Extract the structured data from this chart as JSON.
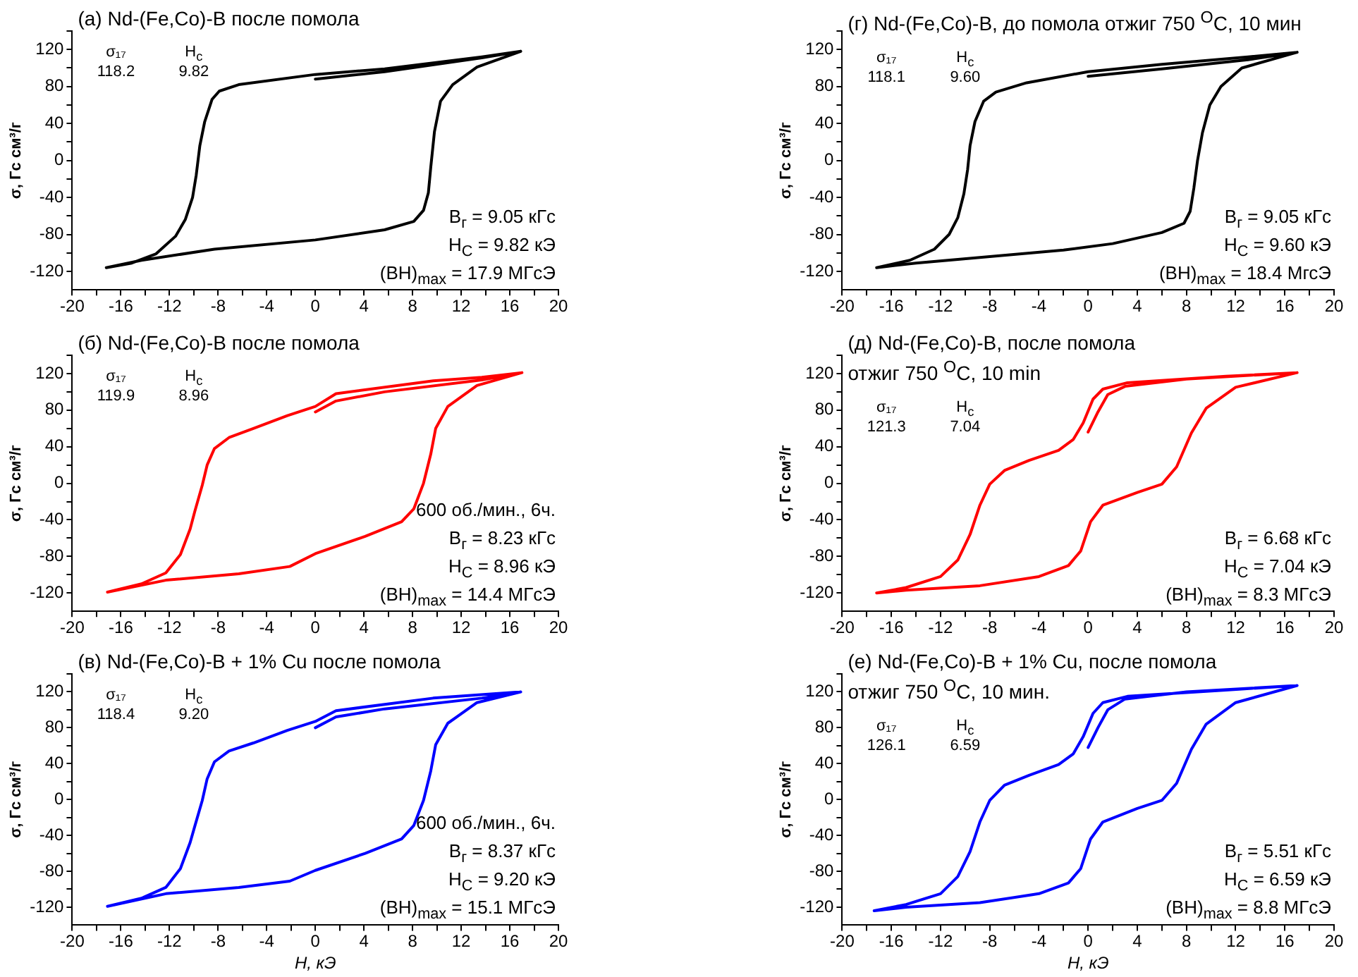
{
  "chart_data": [
    {
      "type": "line",
      "title": "(a)  Nd-(Fe,Co)-B после помола",
      "ylabel": "σ, Гс см³/г",
      "xlim": [
        -20,
        20
      ],
      "ylim": [
        -140,
        140
      ],
      "grid": false,
      "legend": false,
      "marker": "none",
      "line_style": "solid",
      "xticks": [
        -20,
        {
          "value": -18,
          "label": null
        },
        -16,
        {
          "value": -14,
          "label": null
        },
        -12,
        {
          "value": -10,
          "label": null
        },
        -8,
        {
          "value": -6,
          "label": null
        },
        -4,
        {
          "value": -2,
          "label": null
        },
        0,
        {
          "value": 2,
          "label": null
        },
        4,
        {
          "value": 6,
          "label": null
        },
        8,
        {
          "value": 10,
          "label": null
        },
        12,
        {
          "value": 14,
          "label": null
        },
        16,
        {
          "value": 18,
          "label": null
        },
        20
      ],
      "yticks": [
        -120,
        {
          "value": -100,
          "label": null
        },
        -80,
        {
          "value": -60,
          "label": null
        },
        -40,
        {
          "value": -20,
          "label": null
        },
        0,
        {
          "value": 20,
          "label": null
        },
        40,
        {
          "value": 60,
          "label": null
        },
        80,
        {
          "value": 100,
          "label": null
        },
        120,
        {
          "value": 140,
          "label": null
        }
      ],
      "annotations": [
        "σ₁₇",
        "H$_{c}$",
        "118.2",
        "9.82",
        "B$_{г}$ = 9.05 кГс",
        "H$_{C}$ = 9.82 кЭ",
        "(BH)$_{max}$ =  17.9 МГсЭ"
      ],
      "series": [
        {
          "color": "#000000",
          "x": [
            0,
            5.7,
            13.7,
            16.9,
            13.7,
            5.7,
            0,
            -6.3,
            -7.9,
            -8.5,
            -9.1,
            -9.5,
            -9.8,
            -10.1,
            -10.7,
            -11.5,
            -13.1,
            -15.1,
            -17.2,
            -14.3,
            -8.3,
            0,
            5.7,
            8.1,
            8.9,
            9.3,
            9.5,
            9.8,
            10.3,
            11.3,
            13.3,
            16.9
          ],
          "values": [
            88,
            96,
            111,
            118,
            112,
            99,
            93,
            82,
            75,
            66,
            42,
            16,
            -16,
            -40,
            -64,
            -82,
            -101,
            -111,
            -116,
            -108,
            -96,
            -86,
            -75,
            -66,
            -54,
            -35,
            -7,
            31,
            64,
            82,
            101,
            118
          ]
        }
      ]
    },
    {
      "type": "line",
      "title": "(г) Nd-(Fe,Co)-B, до помола отжиг 750 $^{O}$C, 10 мин",
      "ylabel": "σ, Гс см³/г",
      "xlim": [
        -20,
        20
      ],
      "ylim": [
        -140,
        140
      ],
      "grid": false,
      "legend": false,
      "marker": "none",
      "line_style": "solid",
      "xticks": [
        -20,
        {
          "value": -18,
          "label": null
        },
        -16,
        {
          "value": -14,
          "label": null
        },
        -12,
        {
          "value": -10,
          "label": null
        },
        -8,
        {
          "value": -6,
          "label": null
        },
        -4,
        {
          "value": -2,
          "label": null
        },
        0,
        {
          "value": 2,
          "label": null
        },
        4,
        {
          "value": 6,
          "label": null
        },
        8,
        {
          "value": 10,
          "label": null
        },
        12,
        {
          "value": 14,
          "label": null
        },
        16,
        {
          "value": 18,
          "label": null
        },
        20
      ],
      "yticks": [
        -120,
        {
          "value": -100,
          "label": null
        },
        -80,
        {
          "value": -60,
          "label": null
        },
        -40,
        {
          "value": -20,
          "label": null
        },
        0,
        {
          "value": 20,
          "label": null
        },
        40,
        {
          "value": 60,
          "label": null
        },
        80,
        {
          "value": 100,
          "label": null
        },
        120,
        {
          "value": 140,
          "label": null
        }
      ],
      "annotations": [
        "σ₁₇",
        "H$_{c}$",
        "118.1",
        "9.60",
        "B$_{г}$ = 9.05 кГс",
        "H$_{C}$ = 9.60 кЭ",
        "(BH)$_{max}$ =  18.4 МгсЭ"
      ],
      "series": [
        {
          "color": "#000000",
          "x": [
            0,
            6,
            13,
            17,
            13,
            6,
            0,
            -5,
            -7.5,
            -8.5,
            -9.2,
            -9.6,
            -9.8,
            -10.1,
            -10.6,
            -11.3,
            -12.5,
            -14.5,
            -17.2,
            -14,
            -8,
            -2,
            2,
            6,
            7.8,
            8.3,
            8.6,
            8.9,
            9.3,
            9.9,
            10.8,
            12.5,
            17
          ],
          "values": [
            91,
            99,
            109,
            117,
            112,
            104,
            96,
            84,
            74,
            64,
            42,
            16,
            -10,
            -36,
            -62,
            -80,
            -96,
            -108,
            -116,
            -111,
            -104,
            -97,
            -90,
            -78,
            -68,
            -55,
            -30,
            0,
            30,
            60,
            80,
            100,
            117
          ]
        }
      ]
    },
    {
      "type": "line",
      "title": "(б) Nd-(Fe,Co)-B после помола",
      "ylabel": "σ, Гс см³/г",
      "xlim": [
        -20,
        20
      ],
      "ylim": [
        -140,
        140
      ],
      "grid": false,
      "legend": false,
      "marker": "none",
      "line_style": "solid",
      "xticks": [
        -20,
        {
          "value": -18,
          "label": null
        },
        -16,
        {
          "value": -14,
          "label": null
        },
        -12,
        {
          "value": -10,
          "label": null
        },
        -8,
        {
          "value": -6,
          "label": null
        },
        -4,
        {
          "value": -2,
          "label": null
        },
        0,
        {
          "value": 2,
          "label": null
        },
        4,
        {
          "value": 6,
          "label": null
        },
        8,
        {
          "value": 10,
          "label": null
        },
        12,
        {
          "value": 14,
          "label": null
        },
        16,
        {
          "value": 18,
          "label": null
        },
        20
      ],
      "yticks": [
        -120,
        {
          "value": -100,
          "label": null
        },
        -80,
        {
          "value": -60,
          "label": null
        },
        -40,
        {
          "value": -20,
          "label": null
        },
        0,
        {
          "value": 20,
          "label": null
        },
        40,
        {
          "value": 60,
          "label": null
        },
        80,
        {
          "value": 100,
          "label": null
        },
        120,
        {
          "value": 140,
          "label": null
        }
      ],
      "annotations": [
        "σ₁₇",
        "H$_{c}$",
        "119.9",
        "8.96",
        "600 об./мин., 6ч.",
        "B$_{г}$ = 8.23 кГс",
        "H$_{C}$ = 8.96 кЭ",
        "(BH)$_{max}$ = 14.4 МГсЭ"
      ],
      "series": [
        {
          "color": "#ff0000",
          "x": [
            0,
            1.7,
            5.7,
            13.7,
            17,
            13.7,
            9.7,
            1.7,
            0,
            -2.3,
            -5.1,
            -7.1,
            -8.3,
            -8.9,
            -9.3,
            -9.9,
            -10.3,
            -11.1,
            -12.3,
            -14.3,
            -17.1,
            -12.3,
            -6.3,
            -2.1,
            0,
            4.1,
            7.1,
            8.1,
            8.9,
            9.5,
            9.9,
            10.9,
            13.3,
            17
          ],
          "values": [
            78,
            90,
            100,
            113,
            121,
            116,
            112,
            98,
            84,
            74,
            60,
            50,
            38,
            20,
            -2,
            -30,
            -50,
            -78,
            -98,
            -110,
            -119,
            -106,
            -99,
            -91,
            -77,
            -58,
            -42,
            -28,
            0,
            32,
            60,
            84,
            107,
            121
          ]
        }
      ]
    },
    {
      "type": "line",
      "title": "(д) Nd-(Fe,Co)-B,  после помола",
      "subtitle": "отжиг 750 $^{O}$C, 10 min",
      "ylabel": "σ, Гс см³/г",
      "xlim": [
        -20,
        20
      ],
      "ylim": [
        -140,
        140
      ],
      "grid": false,
      "legend": false,
      "marker": "none",
      "line_style": "solid",
      "xticks": [
        -20,
        {
          "value": -18,
          "label": null
        },
        -16,
        {
          "value": -14,
          "label": null
        },
        -12,
        {
          "value": -10,
          "label": null
        },
        -8,
        {
          "value": -6,
          "label": null
        },
        -4,
        {
          "value": -2,
          "label": null
        },
        0,
        {
          "value": 2,
          "label": null
        },
        4,
        {
          "value": 6,
          "label": null
        },
        8,
        {
          "value": 10,
          "label": null
        },
        12,
        {
          "value": 14,
          "label": null
        },
        16,
        {
          "value": 18,
          "label": null
        },
        20
      ],
      "yticks": [
        -120,
        {
          "value": -100,
          "label": null
        },
        -80,
        {
          "value": -60,
          "label": null
        },
        -40,
        {
          "value": -20,
          "label": null
        },
        0,
        {
          "value": 20,
          "label": null
        },
        40,
        {
          "value": 60,
          "label": null
        },
        80,
        {
          "value": 100,
          "label": null
        },
        120,
        {
          "value": 140,
          "label": null
        }
      ],
      "annotations": [
        "σ₁₇",
        "H$_{c}$",
        "121.3",
        "7.04",
        "B$_{г}$ = 6.68 кГс",
        "H$_{C}$ = 7.04 кЭ",
        "(BH)$_{max}$ =  8.3 МГсЭ"
      ],
      "series": [
        {
          "color": "#ff0000",
          "x": [
            0,
            0.8,
            1.6,
            3,
            8,
            17,
            11.2,
            3.2,
            1.2,
            0.4,
            -0.4,
            -1.2,
            -2.4,
            -4.8,
            -6.8,
            -8,
            -8.8,
            -9.6,
            -10.6,
            -12,
            -14.8,
            -17.2,
            -14.8,
            -8.8,
            -4,
            -1.6,
            -0.6,
            0.2,
            1.2,
            4,
            6,
            7.2,
            8.4,
            9.6,
            12,
            17
          ],
          "values": [
            56,
            78,
            97,
            106,
            114,
            121,
            117,
            110,
            103,
            92,
            66,
            48,
            36,
            25,
            14,
            -1,
            -24,
            -56,
            -84,
            -102,
            -114,
            -120,
            -117,
            -112,
            -102,
            -90,
            -74,
            -42,
            -24,
            -10,
            -1,
            18,
            55,
            82,
            105,
            121
          ]
        }
      ]
    },
    {
      "type": "line",
      "title": "(в) Nd-(Fe,Co)-B + 1% Cu после помола",
      "xlabel": "H, кЭ",
      "ylabel": "σ, Гс см³/г",
      "xlim": [
        -20,
        20
      ],
      "ylim": [
        -140,
        140
      ],
      "grid": false,
      "legend": false,
      "marker": "none",
      "line_style": "solid",
      "xticks": [
        -20,
        {
          "value": -18,
          "label": null
        },
        -16,
        {
          "value": -14,
          "label": null
        },
        -12,
        {
          "value": -10,
          "label": null
        },
        -8,
        {
          "value": -6,
          "label": null
        },
        -4,
        {
          "value": -2,
          "label": null
        },
        0,
        {
          "value": 2,
          "label": null
        },
        4,
        {
          "value": 6,
          "label": null
        },
        8,
        {
          "value": 10,
          "label": null
        },
        12,
        {
          "value": 14,
          "label": null
        },
        16,
        {
          "value": 18,
          "label": null
        },
        20
      ],
      "yticks": [
        -120,
        {
          "value": -100,
          "label": null
        },
        -80,
        {
          "value": -60,
          "label": null
        },
        -40,
        {
          "value": -20,
          "label": null
        },
        0,
        {
          "value": 20,
          "label": null
        },
        40,
        {
          "value": 60,
          "label": null
        },
        80,
        {
          "value": 100,
          "label": null
        },
        120,
        {
          "value": 140,
          "label": null
        }
      ],
      "annotations": [
        "σ₁₇",
        "H$_{c}$",
        "118.4",
        "9.20",
        "600 об./мин., 6ч.",
        "B$_{г}$ = 8.37 кГс",
        "H$_{C}$ = 9.20 кЭ",
        "(BH)$_{max}$ =  15.1 МГсЭ"
      ],
      "series": [
        {
          "color": "#0000ff",
          "x": [
            0,
            1.7,
            5.7,
            13.7,
            16.9,
            9.7,
            1.7,
            0,
            -2.3,
            -5.1,
            -7.1,
            -8.3,
            -8.9,
            -9.3,
            -9.9,
            -10.3,
            -11.1,
            -12.3,
            -14.3,
            -17.1,
            -12.3,
            -6.3,
            -2.1,
            0,
            4.1,
            7.1,
            8.1,
            8.9,
            9.5,
            9.9,
            10.9,
            13.3,
            16.9
          ],
          "values": [
            80,
            92,
            101,
            113,
            120,
            113,
            99,
            87,
            77,
            63,
            54,
            42,
            23,
            -1,
            -29,
            -48,
            -77,
            -98,
            -110,
            -119,
            -105,
            -98,
            -91,
            -79,
            -60,
            -44,
            -29,
            -1,
            32,
            61,
            85,
            108,
            120
          ]
        }
      ]
    },
    {
      "type": "line",
      "title": "(е) Nd-(Fe,Co)-B + 1% Cu, после помола",
      "subtitle": "отжиг 750 $^{O}$C, 10 мин.",
      "xlabel": "H, кЭ",
      "ylabel": "σ, Гс см³/г",
      "xlim": [
        -20,
        20
      ],
      "ylim": [
        -140,
        140
      ],
      "grid": false,
      "legend": false,
      "marker": "none",
      "line_style": "solid",
      "xticks": [
        -20,
        {
          "value": -18,
          "label": null
        },
        -16,
        {
          "value": -14,
          "label": null
        },
        -12,
        {
          "value": -10,
          "label": null
        },
        -8,
        {
          "value": -6,
          "label": null
        },
        -4,
        {
          "value": -2,
          "label": null
        },
        0,
        {
          "value": 2,
          "label": null
        },
        4,
        {
          "value": 6,
          "label": null
        },
        8,
        {
          "value": 10,
          "label": null
        },
        12,
        {
          "value": 14,
          "label": null
        },
        16,
        {
          "value": 18,
          "label": null
        },
        20
      ],
      "yticks": [
        -120,
        {
          "value": -100,
          "label": null
        },
        -80,
        {
          "value": -60,
          "label": null
        },
        -40,
        {
          "value": -20,
          "label": null
        },
        0,
        {
          "value": 20,
          "label": null
        },
        40,
        {
          "value": 60,
          "label": null
        },
        80,
        {
          "value": 100,
          "label": null
        },
        120,
        {
          "value": 140,
          "label": null
        }
      ],
      "annotations": [
        "σ₁₇",
        "H$_{c}$",
        "126.1",
        "6.59",
        "B$_{г}$ = 5.51 кГс",
        "H$_{C}$ = 6.59 кЭ",
        "(BH)$_{max}$ =  8.8 МГсЭ"
      ],
      "series": [
        {
          "color": "#0000ff",
          "x": [
            0,
            0.8,
            1.6,
            3,
            8,
            17,
            11.2,
            3.2,
            1.2,
            0.4,
            -0.4,
            -1.2,
            -2.4,
            -4.8,
            -6.8,
            -8,
            -8.8,
            -9.6,
            -10.6,
            -12,
            -14.8,
            -17.4,
            -14.8,
            -8.8,
            -4,
            -1.6,
            -0.6,
            0.2,
            1.2,
            4,
            6,
            7.2,
            8.4,
            9.6,
            12,
            17
          ],
          "values": [
            58,
            80,
            100,
            112,
            120,
            127,
            122,
            115,
            108,
            96,
            70,
            51,
            39,
            27,
            16,
            -1,
            -25,
            -58,
            -86,
            -105,
            -117,
            -124,
            -120,
            -115,
            -105,
            -93,
            -77,
            -44,
            -25,
            -10,
            -1,
            18,
            56,
            84,
            108,
            127
          ]
        }
      ]
    }
  ]
}
